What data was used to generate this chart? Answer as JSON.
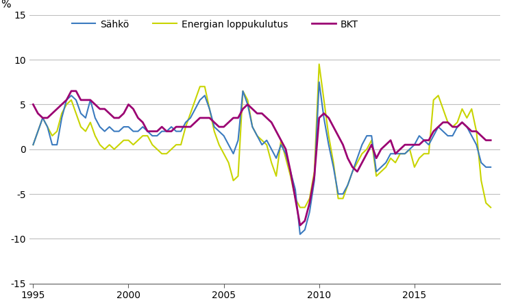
{
  "ylabel": "%",
  "xlim": [
    1994.8,
    2019.5
  ],
  "ylim": [
    -15,
    15
  ],
  "yticks": [
    -15,
    -10,
    -5,
    0,
    5,
    10,
    15
  ],
  "xticks": [
    1995,
    2000,
    2005,
    2010,
    2015
  ],
  "grid_color": "#bebebe",
  "background_color": "#ffffff",
  "color_sahko": "#3a7abf",
  "color_energia": "#c8d400",
  "color_bkt": "#9b0072",
  "legend_labels": [
    "Sähkö",
    "Energian loppukulutus",
    "BKT"
  ],
  "years": [
    1995.0,
    1995.25,
    1995.5,
    1995.75,
    1996.0,
    1996.25,
    1996.5,
    1996.75,
    1997.0,
    1997.25,
    1997.5,
    1997.75,
    1998.0,
    1998.25,
    1998.5,
    1998.75,
    1999.0,
    1999.25,
    1999.5,
    1999.75,
    2000.0,
    2000.25,
    2000.5,
    2000.75,
    2001.0,
    2001.25,
    2001.5,
    2001.75,
    2002.0,
    2002.25,
    2002.5,
    2002.75,
    2003.0,
    2003.25,
    2003.5,
    2003.75,
    2004.0,
    2004.25,
    2004.5,
    2004.75,
    2005.0,
    2005.25,
    2005.5,
    2005.75,
    2006.0,
    2006.25,
    2006.5,
    2006.75,
    2007.0,
    2007.25,
    2007.5,
    2007.75,
    2008.0,
    2008.25,
    2008.5,
    2008.75,
    2009.0,
    2009.25,
    2009.5,
    2009.75,
    2010.0,
    2010.25,
    2010.5,
    2010.75,
    2011.0,
    2011.25,
    2011.5,
    2011.75,
    2012.0,
    2012.25,
    2012.5,
    2012.75,
    2013.0,
    2013.25,
    2013.5,
    2013.75,
    2014.0,
    2014.25,
    2014.5,
    2014.75,
    2015.0,
    2015.25,
    2015.5,
    2015.75,
    2016.0,
    2016.25,
    2016.5,
    2016.75,
    2017.0,
    2017.25,
    2017.5,
    2017.75,
    2018.0,
    2018.25,
    2018.5,
    2018.75,
    2019.0
  ],
  "sahko": [
    0.5,
    2.0,
    3.5,
    2.5,
    0.5,
    0.5,
    3.5,
    5.5,
    6.0,
    5.5,
    4.0,
    3.5,
    5.5,
    3.5,
    2.5,
    2.0,
    2.5,
    2.0,
    2.0,
    2.5,
    2.5,
    2.0,
    2.0,
    2.5,
    2.0,
    1.5,
    1.5,
    2.0,
    2.0,
    2.5,
    2.0,
    2.0,
    3.0,
    3.5,
    4.5,
    5.5,
    6.0,
    4.5,
    2.5,
    2.0,
    1.5,
    0.5,
    -0.5,
    1.0,
    6.5,
    5.0,
    2.5,
    1.5,
    0.5,
    1.0,
    0.0,
    -1.0,
    0.5,
    -0.5,
    -2.5,
    -4.5,
    -9.5,
    -9.0,
    -7.0,
    -3.5,
    7.5,
    3.5,
    0.5,
    -2.0,
    -5.0,
    -5.0,
    -4.0,
    -2.5,
    -1.0,
    0.5,
    1.5,
    1.5,
    -2.5,
    -2.0,
    -1.5,
    -0.5,
    -0.5,
    -0.5,
    -0.5,
    0.0,
    0.5,
    1.5,
    1.0,
    0.5,
    1.5,
    2.5,
    2.0,
    1.5,
    1.5,
    2.5,
    3.0,
    2.5,
    1.5,
    0.5,
    -1.5,
    -2.0,
    -2.0
  ],
  "energia": [
    0.5,
    2.0,
    3.5,
    2.5,
    1.5,
    2.0,
    4.0,
    5.0,
    5.5,
    4.0,
    2.5,
    2.0,
    3.0,
    1.5,
    0.5,
    0.0,
    0.5,
    0.0,
    0.5,
    1.0,
    1.0,
    0.5,
    1.0,
    1.5,
    1.5,
    0.5,
    0.0,
    -0.5,
    -0.5,
    0.0,
    0.5,
    0.5,
    2.5,
    4.0,
    5.5,
    7.0,
    7.0,
    4.5,
    2.0,
    0.5,
    -0.5,
    -1.5,
    -3.5,
    -3.0,
    6.5,
    5.5,
    2.5,
    1.5,
    1.0,
    0.5,
    -1.5,
    -3.0,
    1.0,
    -1.0,
    -3.0,
    -5.5,
    -6.5,
    -6.5,
    -5.5,
    -2.5,
    9.5,
    5.5,
    1.5,
    -1.5,
    -5.5,
    -5.5,
    -4.0,
    -2.5,
    -1.5,
    -0.5,
    0.0,
    1.0,
    -3.0,
    -2.5,
    -2.0,
    -1.0,
    -1.5,
    -0.5,
    -0.5,
    0.0,
    -2.0,
    -1.0,
    -0.5,
    -0.5,
    5.5,
    6.0,
    4.5,
    3.0,
    2.5,
    3.0,
    4.5,
    3.5,
    4.5,
    2.0,
    -3.5,
    -6.0,
    -6.5
  ],
  "bkt": [
    5.0,
    4.0,
    3.5,
    3.5,
    4.0,
    4.5,
    5.0,
    5.5,
    6.5,
    6.5,
    5.5,
    5.5,
    5.5,
    5.0,
    4.5,
    4.5,
    4.0,
    3.5,
    3.5,
    4.0,
    5.0,
    4.5,
    3.5,
    3.0,
    2.0,
    2.0,
    2.0,
    2.5,
    2.0,
    2.0,
    2.5,
    2.5,
    2.5,
    2.5,
    3.0,
    3.5,
    3.5,
    3.5,
    3.0,
    2.5,
    2.5,
    3.0,
    3.5,
    3.5,
    4.5,
    5.0,
    4.5,
    4.0,
    4.0,
    3.5,
    3.0,
    2.0,
    1.0,
    0.0,
    -2.5,
    -5.5,
    -8.5,
    -8.0,
    -6.0,
    -3.0,
    3.5,
    4.0,
    3.5,
    2.5,
    1.5,
    0.5,
    -1.0,
    -2.0,
    -2.5,
    -1.5,
    -0.5,
    0.5,
    -1.0,
    0.0,
    0.5,
    1.0,
    -0.5,
    0.0,
    0.5,
    0.5,
    0.5,
    0.5,
    1.0,
    1.0,
    2.0,
    2.5,
    3.0,
    3.0,
    2.5,
    2.5,
    3.0,
    2.5,
    2.0,
    2.0,
    1.5,
    1.0,
    1.0
  ]
}
